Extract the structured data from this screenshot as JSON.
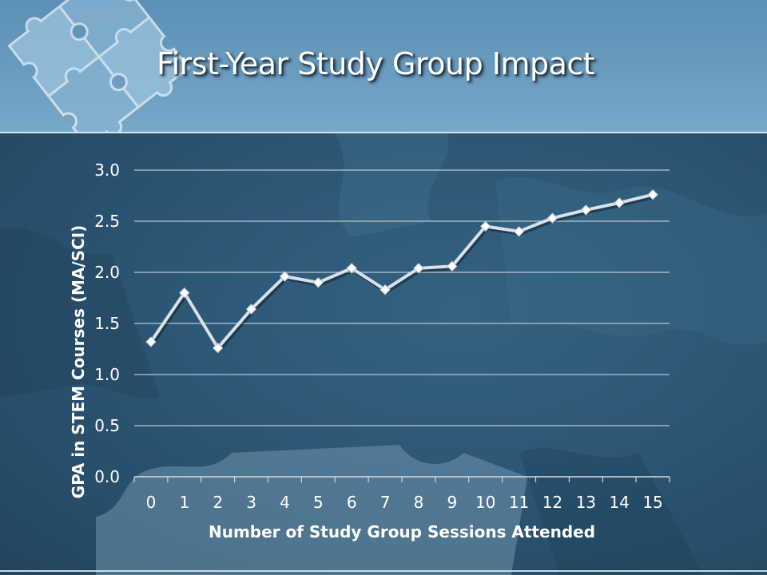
{
  "slide": {
    "title": "First-Year Study Group Impact"
  },
  "colors": {
    "header_top": "#5c90b6",
    "body_bg": "#2b5573",
    "line": "#d9e1ea",
    "gridline": "#cfdbe4",
    "text": "#ffffff"
  },
  "decorations": {
    "logo": "puzzle-pieces-icon",
    "background": "puzzle-piece-pattern"
  },
  "chart_data": {
    "type": "line",
    "title": "",
    "xlabel": "Number of Study Group Sessions Attended",
    "ylabel": "GPA in STEM Courses (MA/SCI)",
    "x": [
      0,
      1,
      2,
      3,
      4,
      5,
      6,
      7,
      8,
      9,
      10,
      11,
      12,
      13,
      14,
      15
    ],
    "x_tick_labels": [
      "0",
      "1",
      "2",
      "3",
      "4",
      "5",
      "6",
      "7",
      "8",
      "9",
      "10",
      "11",
      "12",
      "13",
      "14",
      "15"
    ],
    "y_tick_labels": [
      "0.0",
      "0.5",
      "1.0",
      "1.5",
      "2.0",
      "2.5",
      "3.0"
    ],
    "y_ticks": [
      0,
      0.5,
      1.0,
      1.5,
      2.0,
      2.5,
      3.0
    ],
    "ylim": [
      0,
      3.0
    ],
    "grid": true,
    "legend": "none",
    "series": [
      {
        "values": [
          1.32,
          1.8,
          1.26,
          1.64,
          1.96,
          1.9,
          2.04,
          1.83,
          2.04,
          2.06,
          2.45,
          2.4,
          2.53,
          2.61,
          2.68,
          2.76
        ],
        "marker": "diamond"
      }
    ]
  }
}
